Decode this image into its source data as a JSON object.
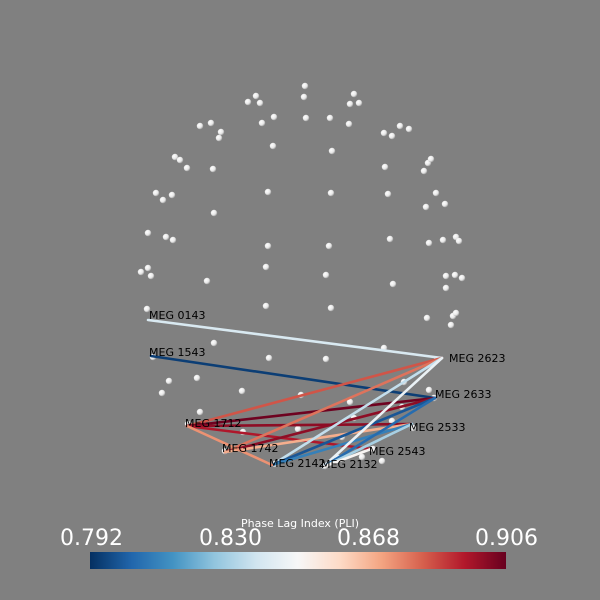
{
  "colorbar": {
    "title": "Phase Lag Index (PLI)",
    "ticks": [
      "0.792",
      "0.830",
      "0.868",
      "0.906"
    ],
    "colormap": [
      "#053061",
      "#2166ac",
      "#4393c3",
      "#92c5de",
      "#d1e5f0",
      "#f7f7f7",
      "#fddbc7",
      "#f4a582",
      "#d6604d",
      "#b2182b",
      "#67001f"
    ]
  },
  "sensors": [
    "MEG 0143",
    "MEG 1543",
    "MEG 2623",
    "MEG 2633",
    "MEG 1712",
    "MEG 2533",
    "MEG 1742",
    "MEG 2543",
    "MEG 2142",
    "MEG 2132"
  ],
  "connections": [
    {
      "a": "MEG 0143",
      "b": "MEG 2623",
      "value": 0.84
    },
    {
      "a": "MEG 1543",
      "b": "MEG 2633",
      "value": 0.795
    },
    {
      "a": "MEG 1712",
      "b": "MEG 2623",
      "value": 0.885
    },
    {
      "a": "MEG 1712",
      "b": "MEG 2633",
      "value": 0.905
    },
    {
      "a": "MEG 1712",
      "b": "MEG 2533",
      "value": 0.9
    },
    {
      "a": "MEG 1712",
      "b": "MEG 2543",
      "value": 0.895
    },
    {
      "a": "MEG 1742",
      "b": "MEG 2623",
      "value": 0.88
    },
    {
      "a": "MEG 1742",
      "b": "MEG 2633",
      "value": 0.9
    },
    {
      "a": "MEG 1742",
      "b": "MEG 2533",
      "value": 0.87
    },
    {
      "a": "MEG 2142",
      "b": "MEG 2623",
      "value": 0.835
    },
    {
      "a": "MEG 2142",
      "b": "MEG 2633",
      "value": 0.8
    },
    {
      "a": "MEG 2142",
      "b": "MEG 2533",
      "value": 0.81
    },
    {
      "a": "MEG 2142",
      "b": "MEG 1712",
      "value": 0.875
    },
    {
      "a": "MEG 2132",
      "b": "MEG 2623",
      "value": 0.845
    },
    {
      "a": "MEG 2132",
      "b": "MEG 2633",
      "value": 0.805
    },
    {
      "a": "MEG 2132",
      "b": "MEG 2533",
      "value": 0.83
    },
    {
      "a": "MEG 2132",
      "b": "MEG 2543",
      "value": 0.85
    }
  ]
}
